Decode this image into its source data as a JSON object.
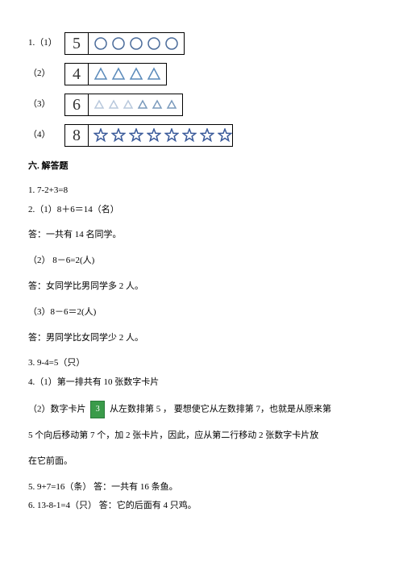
{
  "rows": [
    {
      "label": "1.（1）",
      "number": "5",
      "shape": "circle",
      "count": 5,
      "stroke": "#4a6b9a",
      "fill": "none",
      "box_wide": false,
      "size": 18
    },
    {
      "label": "（2）",
      "number": "4",
      "shape": "triangle",
      "count": 4,
      "stroke": "#5a8aba",
      "fill": "none",
      "box_wide": false,
      "size": 18
    },
    {
      "label": "（3）",
      "number": "6",
      "shape": "triangle",
      "count": 6,
      "stroke": "#7a9abc",
      "fill": "none",
      "box_wide": false,
      "size": 14,
      "light_first": 3
    },
    {
      "label": "（4）",
      "number": "8",
      "shape": "star",
      "count": 8,
      "stroke": "#3a5a9a",
      "fill": "none",
      "box_wide": true,
      "size": 18
    }
  ],
  "section_title": "六. 解答题",
  "answers": {
    "a1": "1. 7-2+3=8",
    "a2": "2.（1）8＋6＝14（名）",
    "a2_ans": "答：一共有 14 名同学。",
    "a3": "（2）   8－6=2(人)",
    "a3_ans": "答：女同学比男同学多 2 人。",
    "a4": "（3）8－6＝2(人)",
    "a4_ans": "答：男同学比女同学少 2 人。",
    "a5": "3. 9-4=5（只）",
    "a6": "4.（1）第一排共有 10 张数字卡片",
    "a7_pre": "（2）数字卡片",
    "a7_card": "3",
    "a7_post": "从左数排第 5 ，  要想使它从左数排第 7，也就是从原来第",
    "a8": "5 个向后移动第 7 个，加 2 张卡片，因此，应从第二行移动 2 张数字卡片放",
    "a9": "在它前面。",
    "a10": "5. 9+7=16（条）  答：一共有 16 条鱼。",
    "a11": "6. 13-8-1=4（只）            答：它的后面有 4 只鸡。"
  }
}
